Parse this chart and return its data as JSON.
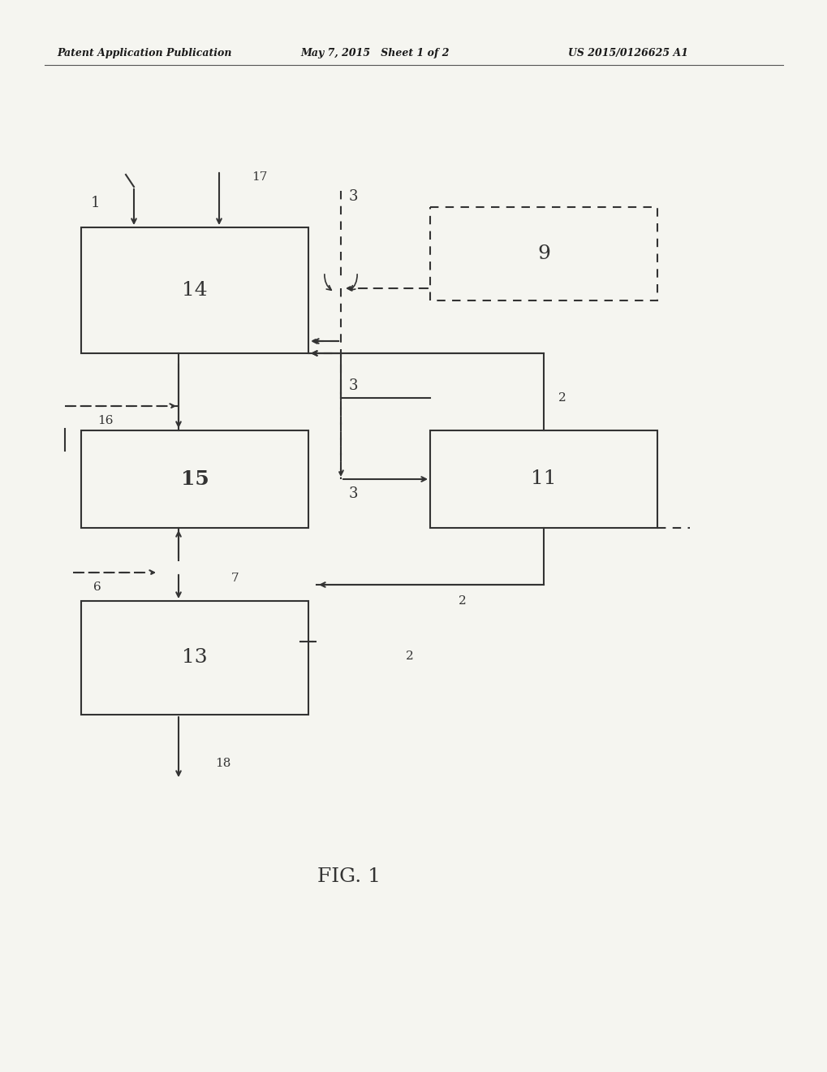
{
  "header_left": "Patent Application Publication",
  "header_mid": "May 7, 2015   Sheet 1 of 2",
  "header_right": "US 2015/0126625 A1",
  "fig_label": "FIG. 1",
  "background_color": "#f5f5f0"
}
